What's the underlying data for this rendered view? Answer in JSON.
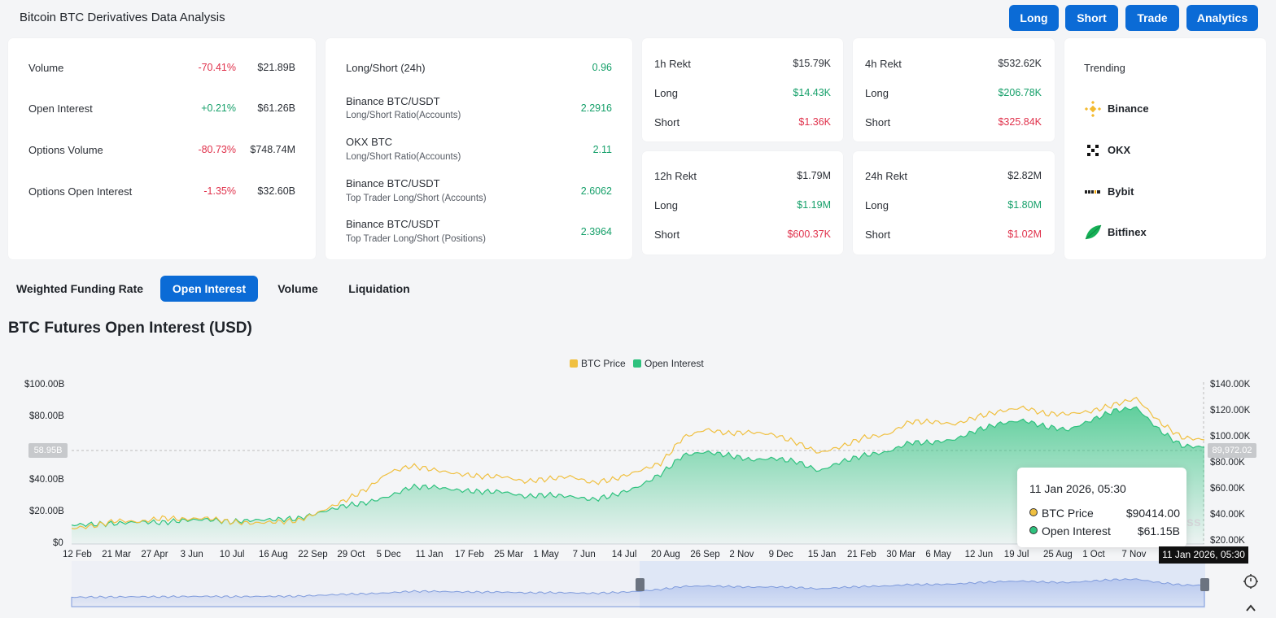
{
  "header": {
    "title": "Bitcoin BTC Derivatives Data Analysis",
    "buttons": [
      "Long",
      "Short",
      "Trade",
      "Analytics"
    ]
  },
  "stats": [
    {
      "label": "Volume",
      "change": "-70.41%",
      "value": "$21.89B",
      "dir": "neg"
    },
    {
      "label": "Open Interest",
      "change": "+0.21%",
      "value": "$61.26B",
      "dir": "pos"
    },
    {
      "label": "Options Volume",
      "change": "-80.73%",
      "value": "$748.74M",
      "dir": "neg"
    },
    {
      "label": "Options Open Interest",
      "change": "-1.35%",
      "value": "$32.60B",
      "dir": "neg"
    }
  ],
  "ratios": [
    {
      "label": "Long/Short (24h)",
      "sub": "",
      "value": "0.96"
    },
    {
      "label": "Binance BTC/USDT",
      "sub": "Long/Short Ratio(Accounts)",
      "value": "2.2916"
    },
    {
      "label": "OKX BTC",
      "sub": "Long/Short Ratio(Accounts)",
      "value": "2.11"
    },
    {
      "label": "Binance BTC/USDT",
      "sub": "Top Trader Long/Short (Accounts)",
      "value": "2.6062"
    },
    {
      "label": "Binance BTC/USDT",
      "sub": "Top Trader Long/Short (Positions)",
      "value": "2.3964"
    }
  ],
  "rekt": [
    {
      "title": "1h Rekt",
      "total": "$15.79K",
      "long_label": "Long",
      "long": "$14.43K",
      "short_label": "Short",
      "short": "$1.36K"
    },
    {
      "title": "4h Rekt",
      "total": "$532.62K",
      "long_label": "Long",
      "long": "$206.78K",
      "short_label": "Short",
      "short": "$325.84K"
    },
    {
      "title": "12h Rekt",
      "total": "$1.79M",
      "long_label": "Long",
      "long": "$1.19M",
      "short_label": "Short",
      "short": "$600.37K"
    },
    {
      "title": "24h Rekt",
      "total": "$2.82M",
      "long_label": "Long",
      "long": "$1.80M",
      "short_label": "Short",
      "short": "$1.02M"
    }
  ],
  "trending": {
    "title": "Trending",
    "items": [
      {
        "name": "Binance",
        "icon": "binance-logo"
      },
      {
        "name": "OKX",
        "icon": "okx-logo"
      },
      {
        "name": "Bybit",
        "icon": "bybit-logo"
      },
      {
        "name": "Bitfinex",
        "icon": "bitfinex-logo"
      }
    ]
  },
  "tabs": [
    {
      "label": "Weighted Funding Rate",
      "active": false
    },
    {
      "label": "Open Interest",
      "active": true
    },
    {
      "label": "Volume",
      "active": false
    },
    {
      "label": "Liquidation",
      "active": false
    }
  ],
  "colors": {
    "accent": "#0b6bd6",
    "positive": "#16a06a",
    "negative": "#e0314b",
    "btc_price": "#f0c040",
    "open_interest": "#2ec27e"
  },
  "chart_data": {
    "type": "area",
    "title": "BTC Futures Open Interest (USD)",
    "legend": [
      "BTC Price",
      "Open Interest"
    ],
    "legend_position": "top-center",
    "y_left_ticks": [
      "$0",
      "$20.00B",
      "$40.00B",
      "$80.00B",
      "$100.00B"
    ],
    "y_right_ticks": [
      "$20.00K",
      "$40.00K",
      "$60.00K",
      "$80.00K",
      "$100.00K",
      "$120.00K",
      "$140.00K"
    ],
    "x_ticks": [
      "12 Feb",
      "21 Mar",
      "27 Apr",
      "3 Jun",
      "10 Jul",
      "16 Aug",
      "22 Sep",
      "29 Oct",
      "5 Dec",
      "11 Jan",
      "17 Feb",
      "25 Mar",
      "1 May",
      "7 Jun",
      "14 Jul",
      "20 Aug",
      "26 Sep",
      "2 Nov",
      "9 Dec",
      "15 Jan",
      "21 Feb",
      "30 Mar",
      "6 May",
      "12 Jun",
      "19 Jul",
      "25 Aug",
      "1 Oct",
      "7 Nov"
    ],
    "crosshair_left_label": "58.95B",
    "crosshair_right_label": "89,972.02",
    "crosshair_time_label": "11 Jan 2026, 05:30",
    "series": [
      {
        "name": "Open Interest",
        "unit": "USD B",
        "values": [
          12,
          12.5,
          13,
          14,
          13.5,
          15,
          15.5,
          14,
          15,
          15.5,
          16,
          20,
          24,
          26,
          30,
          36,
          36,
          34,
          33,
          33,
          30,
          31,
          30,
          28,
          31,
          36,
          44,
          56,
          58,
          56,
          53,
          54,
          52,
          46,
          52,
          56,
          58,
          64,
          64,
          66,
          72,
          76,
          78,
          74,
          72,
          78,
          84,
          86,
          72,
          62,
          61
        ]
      },
      {
        "name": "BTC Price",
        "unit": "USD K",
        "values": [
          22,
          24,
          28,
          27,
          30,
          29,
          30,
          27,
          26,
          27,
          28,
          35,
          43,
          52,
          65,
          70,
          67,
          64,
          62,
          62,
          58,
          60,
          62,
          57,
          60,
          66,
          72,
          92,
          98,
          95,
          96,
          94,
          88,
          80,
          85,
          92,
          94,
          104,
          104,
          102,
          108,
          112,
          115,
          110,
          110,
          112,
          117,
          122,
          104,
          92,
          90
        ]
      }
    ]
  },
  "tooltip": {
    "time": "11 Jan 2026, 05:30",
    "rows": [
      {
        "label": "BTC Price",
        "value": "$90414.00"
      },
      {
        "label": "Open Interest",
        "value": "$61.15B"
      }
    ]
  },
  "watermark": "ss"
}
